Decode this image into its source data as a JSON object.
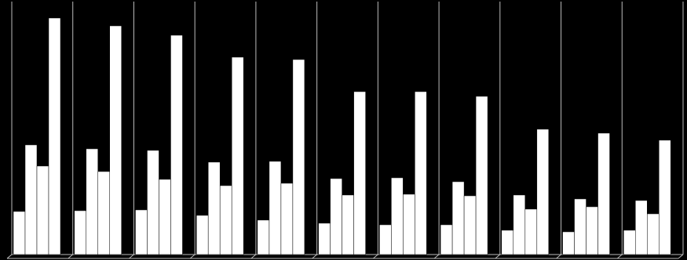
{
  "chart_data": {
    "type": "bar",
    "categories": [
      null,
      null,
      null,
      null,
      null,
      null,
      null,
      null,
      null,
      null,
      null
    ],
    "series": [
      {
        "color": "#ffffff",
        "values": [
          55,
          56,
          57,
          50,
          44,
          40,
          38,
          38,
          31,
          29,
          31
        ]
      },
      {
        "color": "#ffffff",
        "values": [
          140,
          135,
          133,
          118,
          119,
          97,
          98,
          93,
          76,
          71,
          69
        ]
      },
      {
        "color": "#ffffff",
        "values": [
          113,
          106,
          96,
          88,
          91,
          76,
          77,
          75,
          58,
          61,
          52
        ]
      },
      {
        "color": "#ffffff",
        "values": [
          302,
          292,
          280,
          252,
          249,
          208,
          208,
          202,
          160,
          155,
          146
        ]
      }
    ],
    "ylim": [
      0,
      325
    ],
    "background": "#000000",
    "grid": true
  }
}
